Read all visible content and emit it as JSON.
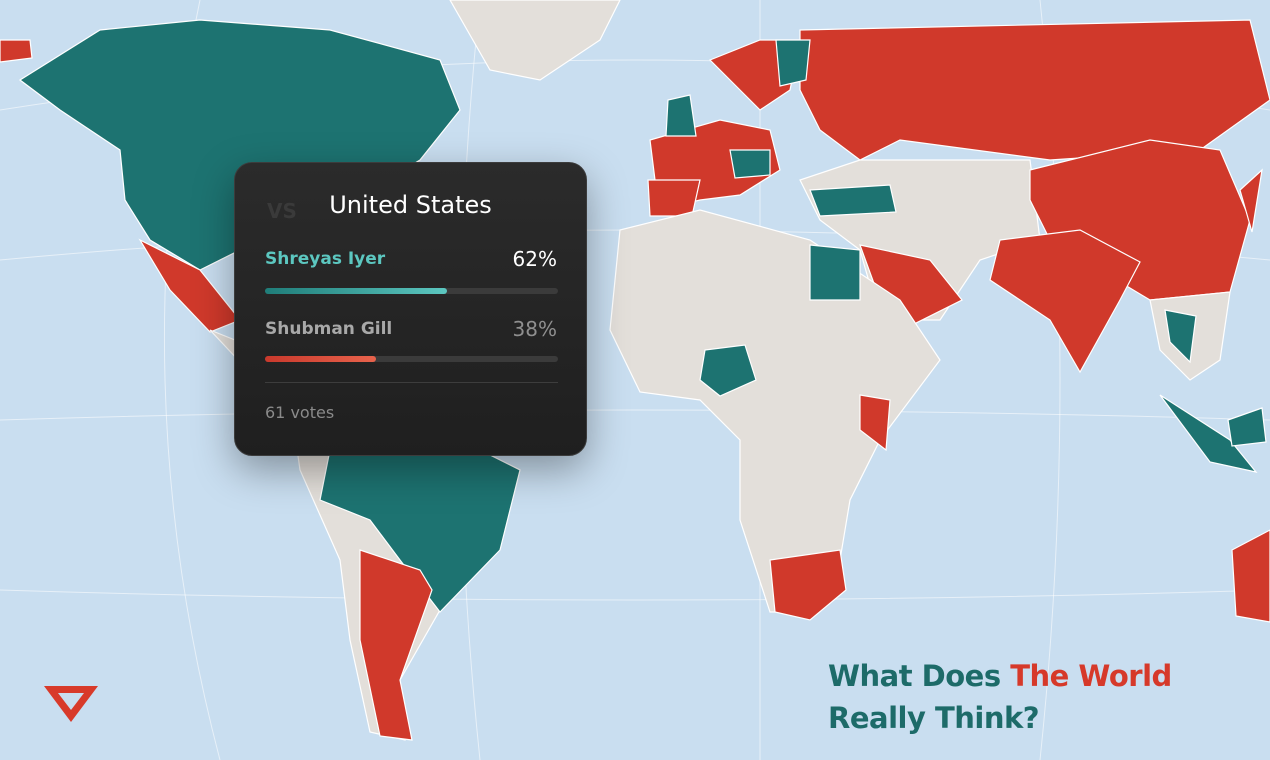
{
  "popup": {
    "watermark": "VS",
    "title": "United States",
    "options": [
      {
        "name": "Shreyas Iyer",
        "value": 62,
        "value_label": "62%"
      },
      {
        "name": "Shubman Gill",
        "value": 38,
        "value_label": "38%"
      }
    ],
    "votes": "61 votes"
  },
  "headline": {
    "part1": "What Does",
    "accent": "The World",
    "part2": "Really Think?"
  }
}
